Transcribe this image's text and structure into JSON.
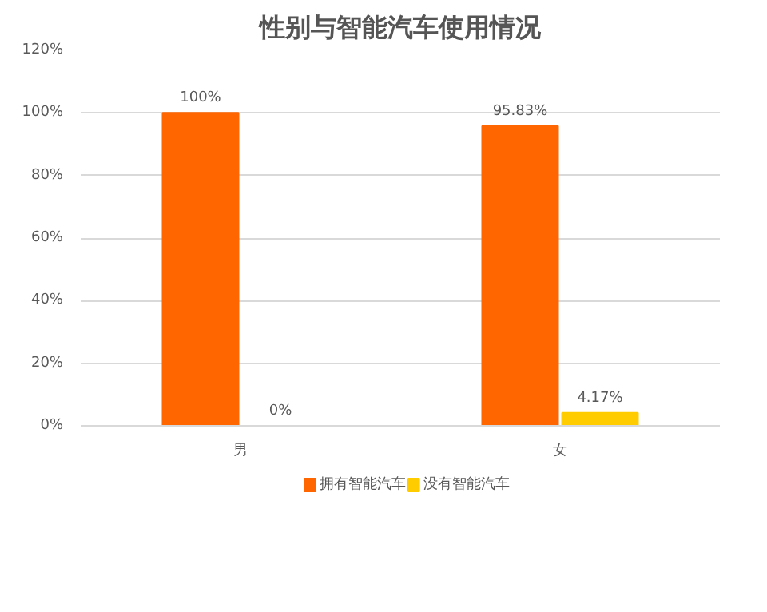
{
  "chart_data": {
    "type": "bar",
    "title": "性别与智能汽车使用情况",
    "categories": [
      "男",
      "女"
    ],
    "series": [
      {
        "name": "拥有智能汽车",
        "color": "#ff6600",
        "values": [
          100,
          95.83
        ],
        "value_labels": [
          "100%",
          "95.83%"
        ]
      },
      {
        "name": "没有智能汽车",
        "color": "#ffcc00",
        "values": [
          0,
          4.17
        ],
        "value_labels": [
          "0%",
          "4.17%"
        ]
      }
    ],
    "ylim": [
      0,
      120
    ],
    "yticks": [
      {
        "value": 0,
        "label": "0%"
      },
      {
        "value": 20,
        "label": "20%"
      },
      {
        "value": 40,
        "label": "40%"
      },
      {
        "value": 60,
        "label": "60%"
      },
      {
        "value": 80,
        "label": "80%"
      },
      {
        "value": 100,
        "label": "100%"
      },
      {
        "value": 120,
        "label": "120%"
      }
    ],
    "grid": "y",
    "legend": "bottom"
  }
}
